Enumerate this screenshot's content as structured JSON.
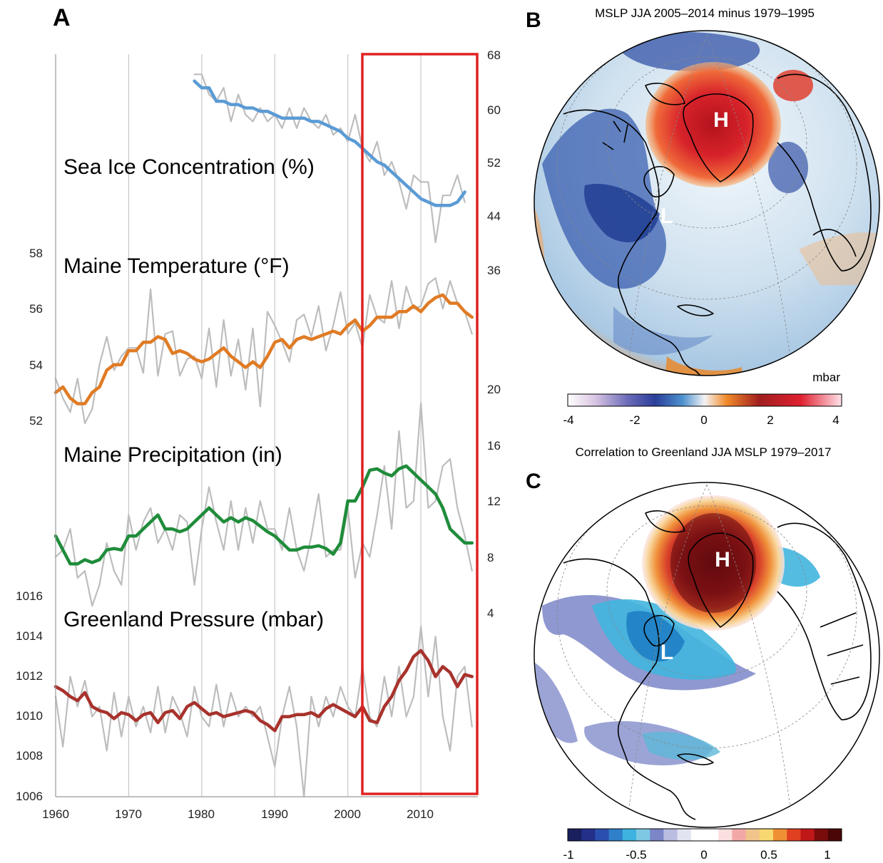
{
  "panels": {
    "a": {
      "letter": "A"
    },
    "b": {
      "letter": "B",
      "title": "MSLP JJA 2005–2014 minus 1979–1995",
      "unit": "mbar",
      "colorbar_ticks": [
        "-4",
        "-2",
        "0",
        "2",
        "4"
      ],
      "high_label": "H",
      "low_label": "L"
    },
    "c": {
      "letter": "C",
      "title": "Correlation to Greenland JJA MSLP 1979–2017",
      "colorbar_ticks": [
        "-1",
        "-0.5",
        "0",
        "0.5",
        "1"
      ],
      "high_label": "H",
      "low_label": "L"
    }
  },
  "colors": {
    "sea_ice": "#5b9bd5",
    "temperature": "#e07b24",
    "precipitation": "#1f8c3a",
    "pressure": "#a8322c",
    "raw": "#bdbdbd",
    "highlight_box": "#e02020",
    "grid": "#c8c8c8"
  },
  "chart_data": {
    "type": "line",
    "x_axis": {
      "range": [
        1960,
        2017
      ],
      "ticks": [
        "1960",
        "1970",
        "1980",
        "1990",
        "2000",
        "2010"
      ]
    },
    "left_axis_upper": {
      "ticks": [
        "58",
        "56",
        "54",
        "52"
      ]
    },
    "left_axis_lower": {
      "ticks": [
        "1016",
        "1014",
        "1012",
        "1010",
        "1008",
        "1006"
      ]
    },
    "right_axis_upper": {
      "ticks": [
        "68",
        "60",
        "52",
        "44",
        "36"
      ]
    },
    "right_axis_lower": {
      "ticks": [
        "20",
        "16",
        "12",
        "8",
        "4"
      ]
    },
    "highlight_period": [
      2002,
      2017
    ],
    "series": [
      {
        "key": "sea_ice",
        "label": "Sea Ice Concentration (%)",
        "start": 1979,
        "raw": [
          65,
          65,
          62,
          61,
          63,
          58,
          62,
          59,
          58,
          60,
          58,
          59,
          57,
          60,
          57,
          60,
          58,
          57,
          59,
          56,
          57,
          55,
          59,
          54,
          52,
          55,
          50,
          52,
          49,
          45,
          50,
          49,
          49,
          40,
          47,
          47,
          50,
          46
        ],
        "smooth": [
          64,
          63,
          63,
          61,
          61,
          60.5,
          60.5,
          60,
          60,
          59.5,
          59.5,
          59,
          58.5,
          58.5,
          58.5,
          58.5,
          58,
          58,
          57.5,
          57,
          56.5,
          55.5,
          55,
          54,
          53,
          52,
          51.5,
          50.5,
          49.5,
          48.5,
          47.5,
          46.5,
          46,
          45.5,
          45.5,
          45.5,
          46,
          47.5
        ]
      },
      {
        "key": "temperature",
        "label": "Maine Temperature (°F)",
        "start": 1960,
        "raw": [
          53.5,
          52.8,
          52.3,
          53.5,
          51.9,
          52.4,
          54,
          55,
          53.8,
          54.3,
          54.6,
          54.6,
          53.7,
          56.7,
          53.6,
          55.1,
          55.2,
          53.6,
          54.2,
          54.3,
          53.5,
          55.3,
          53.2,
          55.6,
          53.6,
          54.9,
          53.1,
          55.3,
          52.5,
          55.9,
          55.4,
          54.8,
          54.1,
          55.6,
          55.8,
          55,
          56.1,
          54.5,
          55.4,
          56.6,
          55.1,
          55.5,
          54.6,
          56.5,
          55.7,
          55.5,
          57,
          55.3,
          56.8,
          56,
          56.1,
          56.9,
          57.1,
          56,
          57,
          56.2,
          55.9,
          55.1
        ],
        "smooth": [
          53,
          53.2,
          52.8,
          52.6,
          52.6,
          53,
          53.2,
          53.8,
          54,
          54,
          54.5,
          54.5,
          54.8,
          54.8,
          55,
          54.9,
          54.4,
          54.5,
          54.4,
          54.2,
          54.1,
          54.2,
          54.4,
          54.6,
          54.3,
          54.1,
          53.9,
          54.1,
          53.9,
          54.3,
          54.8,
          54.9,
          54.6,
          54.9,
          55,
          54.9,
          55,
          55.1,
          55.2,
          55.1,
          55.4,
          55.6,
          55.2,
          55.4,
          55.7,
          55.7,
          55.7,
          55.9,
          55.9,
          56.1,
          55.9,
          56.2,
          56.4,
          56.5,
          56.2,
          56.2,
          55.9,
          55.7
        ]
      },
      {
        "key": "precipitation",
        "label": "Maine Precipitation (in)",
        "start": 1960,
        "raw": [
          8,
          8.5,
          10,
          6.5,
          7,
          4.5,
          6,
          9,
          7,
          6,
          11,
          8.5,
          10.5,
          11.5,
          9,
          10,
          8.5,
          11,
          10.5,
          6,
          10,
          13,
          10.5,
          8.5,
          12,
          8.5,
          11.5,
          9,
          12,
          10,
          10,
          8.5,
          11.5,
          8.5,
          7,
          9.5,
          12.5,
          8,
          8.5,
          8.5,
          11.5,
          6.5,
          9,
          8,
          11,
          14.5,
          10,
          17,
          11.5,
          12,
          19,
          11.5,
          12,
          14.5,
          15,
          11.5,
          9.5,
          7
        ],
        "smooth": [
          9.5,
          8.5,
          7.5,
          7.5,
          7.8,
          7.6,
          7.8,
          8.5,
          8.6,
          8.5,
          9.5,
          9.5,
          10,
          10.5,
          11,
          10,
          10,
          9.8,
          10,
          10.5,
          11,
          11.5,
          11,
          10.5,
          10.8,
          10.5,
          10.8,
          10.6,
          10.2,
          9.8,
          9.5,
          9,
          8.5,
          8.5,
          8.7,
          8.7,
          8.8,
          8.6,
          8.2,
          9,
          12,
          12,
          13,
          14.2,
          14.3,
          14,
          13.8,
          14.3,
          14.5,
          14,
          13.5,
          13,
          12.5,
          11.5,
          10,
          9.5,
          9,
          9
        ]
      },
      {
        "key": "pressure",
        "label": "Greenland Pressure (mbar)",
        "start": 1960,
        "raw": [
          1011,
          1008.5,
          1012,
          1010.5,
          1011.8,
          1010,
          1010.5,
          1008.3,
          1011.2,
          1009,
          1011,
          1009.5,
          1010.5,
          1009.2,
          1011.5,
          1009.2,
          1011,
          1010.2,
          1009,
          1011.5,
          1010,
          1009.5,
          1011.6,
          1009.5,
          1011.2,
          1010,
          1010.5,
          1010,
          1010.5,
          1009,
          1007.5,
          1010,
          1011.5,
          1009.5,
          1006,
          1011,
          1009.5,
          1011,
          1010,
          1011.5,
          1010.5,
          1010,
          1012.5,
          1010,
          1009.5,
          1012,
          1010,
          1012.5,
          1010,
          1011,
          1014.5,
          1011,
          1014,
          1010,
          1008.3,
          1012,
          1012.5,
          1009.5
        ],
        "smooth": [
          1011.5,
          1011.3,
          1011,
          1010.8,
          1011.2,
          1010.5,
          1010.3,
          1010.2,
          1009.9,
          1010.2,
          1010.1,
          1009.8,
          1010.1,
          1010.2,
          1009.7,
          1010.2,
          1010.3,
          1009.9,
          1010.5,
          1010.7,
          1010.4,
          1010.1,
          1010.2,
          1010,
          1010.1,
          1010.2,
          1010.3,
          1010.2,
          1009.8,
          1009.6,
          1009.3,
          1010,
          1010,
          1010.1,
          1010.1,
          1010.2,
          1010,
          1010.4,
          1010.6,
          1010.4,
          1010.2,
          1010,
          1010.5,
          1009.8,
          1009.7,
          1010.5,
          1011,
          1011.8,
          1012.3,
          1013,
          1013.3,
          1012.8,
          1012,
          1012.5,
          1012.2,
          1011.5,
          1012.1,
          1012
        ]
      }
    ]
  }
}
